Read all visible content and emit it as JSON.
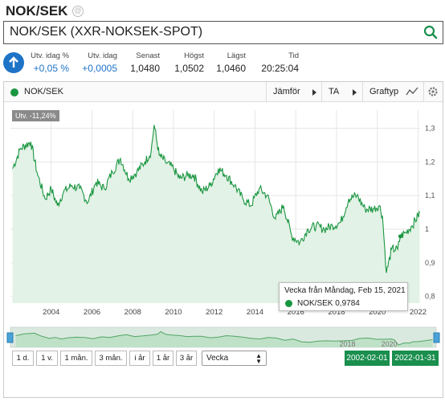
{
  "header": {
    "title": "NOK/SEK",
    "settings_icon": "at-icon"
  },
  "search": {
    "value": "NOK/SEK (XXR-NOKSEK-SPOT)",
    "icon": "search-icon"
  },
  "quote": {
    "change_pct_label": "Utv. idag %",
    "change_pct_value": "+0,05 %",
    "change_label": "Utv. idag",
    "change_value": "+0,0005",
    "last_label": "Senast",
    "last_value": "1,0480",
    "high_label": "Högst",
    "high_value": "1,0502",
    "low_label": "Lägst",
    "low_value": "1,0460",
    "time_label": "Tid",
    "time_value": "20:25:04",
    "accent": "#1f73c7"
  },
  "toolbar": {
    "series_name": "NOK/SEK",
    "compare": "Jämför",
    "ta": "TA",
    "graph_type": "Graftyp"
  },
  "chart": {
    "badge": "Utv. -11,24%",
    "tooltip_date": "Vecka från Måndag, Feb 15, 2021",
    "tooltip_series": "NOK/SEK",
    "tooltip_value": "0,9784",
    "line_color": "#1a9641",
    "navigator_labels": [
      "2018",
      "2020"
    ]
  },
  "chart_data": {
    "type": "line",
    "title": "",
    "xlabel": "",
    "ylabel": "",
    "ylim": [
      0.78,
      1.33
    ],
    "x_ticks": [
      "2004",
      "2006",
      "2008",
      "2010",
      "2012",
      "2014",
      "2016",
      "2018",
      "2020",
      "2022"
    ],
    "y_ticks": [
      "0,8",
      "0,9",
      "1",
      "1,1",
      "1,2",
      "1,3"
    ],
    "series": [
      {
        "name": "NOK/SEK",
        "x": [
          2002.1,
          2002.5,
          2003.0,
          2003.3,
          2003.7,
          2004.0,
          2004.3,
          2004.6,
          2005.0,
          2005.4,
          2005.8,
          2006.2,
          2006.6,
          2007.0,
          2007.4,
          2007.8,
          2008.2,
          2008.6,
          2008.9,
          2009.05,
          2009.3,
          2009.6,
          2010.0,
          2010.3,
          2010.7,
          2011.0,
          2011.4,
          2011.8,
          2012.2,
          2012.6,
          2013.0,
          2013.4,
          2013.8,
          2014.2,
          2014.6,
          2015.0,
          2015.4,
          2015.8,
          2016.2,
          2016.6,
          2017.0,
          2017.4,
          2017.8,
          2018.2,
          2018.6,
          2019.0,
          2019.4,
          2019.8,
          2020.1,
          2020.25,
          2020.45,
          2020.7,
          2021.0,
          2021.13,
          2021.4,
          2021.7,
          2022.0,
          2022.08
        ],
        "values": [
          1.18,
          1.24,
          1.26,
          1.17,
          1.09,
          1.12,
          1.07,
          1.11,
          1.13,
          1.12,
          1.08,
          1.14,
          1.12,
          1.17,
          1.21,
          1.15,
          1.17,
          1.2,
          1.23,
          1.31,
          1.22,
          1.2,
          1.18,
          1.15,
          1.16,
          1.16,
          1.11,
          1.13,
          1.18,
          1.16,
          1.13,
          1.09,
          1.07,
          1.12,
          1.1,
          1.03,
          1.07,
          0.98,
          0.96,
          1.0,
          1.01,
          1.0,
          1.01,
          1.02,
          1.09,
          1.1,
          1.06,
          1.06,
          1.07,
          1.04,
          0.87,
          0.94,
          0.94,
          0.9784,
          0.99,
          1.01,
          1.04,
          1.048
        ]
      }
    ],
    "grid": true
  },
  "range_buttons": [
    "1 d.",
    "1 v.",
    "1 mån.",
    "3 mån.",
    "i år",
    "1 år",
    "3 år"
  ],
  "interval": {
    "value": "Vecka"
  },
  "date_range": {
    "from": "2002-02-01",
    "to": "2022-01-31"
  }
}
